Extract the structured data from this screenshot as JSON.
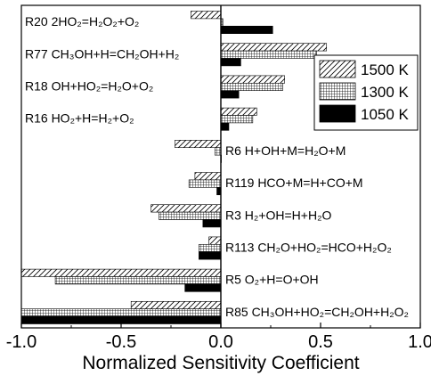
{
  "chart_data": {
    "type": "bar",
    "orientation": "horizontal",
    "title": "",
    "xlabel": "Normalized Sensitivity Coefficient",
    "ylabel": "",
    "xlim": [
      -1.0,
      1.0
    ],
    "xticks": [
      "-1.0",
      "-0.5",
      "0.0",
      "0.5",
      "1.0"
    ],
    "categories": [
      "R20 2HO₂=H₂O₂+O₂",
      "R77 CH₃OH+H=CH₂OH+H₂",
      "R18 OH+HO₂=H₂O+O₂",
      "R16 HO₂+H=H₂+O₂",
      "R6 H+OH+M=H₂O+M",
      "R119 HCO+M=H+CO+M",
      "R3 H₂+OH=H+H₂O",
      "R113 CH₂O+HO₂=HCO+H₂O₂",
      "R5 O₂+H=O+OH",
      "R85 CH₃OH+HO₂=CH₂OH+H₂O₂"
    ],
    "series": [
      {
        "name": "1500 K",
        "pattern": "hatch",
        "values": [
          -0.15,
          0.53,
          0.32,
          0.18,
          -0.23,
          -0.13,
          -0.35,
          -0.06,
          -1.0,
          -0.45
        ]
      },
      {
        "name": "1300 K",
        "pattern": "grid",
        "values": [
          0.01,
          0.48,
          0.31,
          0.16,
          -0.03,
          -0.16,
          -0.31,
          -0.11,
          -0.83,
          -1.0
        ]
      },
      {
        "name": "1050 K",
        "pattern": "solid",
        "values": [
          0.26,
          0.1,
          0.09,
          0.04,
          0.0,
          -0.02,
          -0.09,
          -0.11,
          -0.18,
          -1.0
        ]
      }
    ],
    "legend_position": "right",
    "grid": false
  }
}
